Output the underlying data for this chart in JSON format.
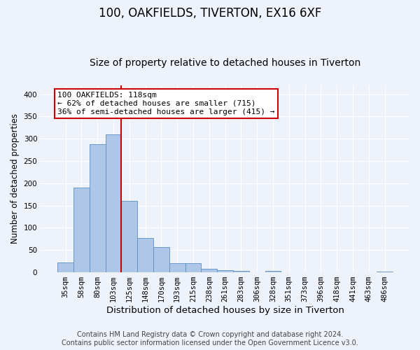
{
  "title": "100, OAKFIELDS, TIVERTON, EX16 6XF",
  "subtitle": "Size of property relative to detached houses in Tiverton",
  "xlabel": "Distribution of detached houses by size in Tiverton",
  "ylabel": "Number of detached properties",
  "categories": [
    "35sqm",
    "58sqm",
    "80sqm",
    "103sqm",
    "125sqm",
    "148sqm",
    "170sqm",
    "193sqm",
    "215sqm",
    "238sqm",
    "261sqm",
    "283sqm",
    "306sqm",
    "328sqm",
    "351sqm",
    "373sqm",
    "396sqm",
    "418sqm",
    "441sqm",
    "463sqm",
    "486sqm"
  ],
  "values": [
    22,
    190,
    288,
    310,
    160,
    77,
    57,
    20,
    20,
    8,
    5,
    4,
    0,
    4,
    0,
    0,
    0,
    0,
    0,
    0,
    1
  ],
  "bar_color": "#aec6e8",
  "bar_edge_color": "#5a8fc0",
  "vline_color": "#cc0000",
  "vline_xindex": 3.5,
  "annotation_text": "100 OAKFIELDS: 118sqm\n← 62% of detached houses are smaller (715)\n36% of semi-detached houses are larger (415) →",
  "annotation_box_color": "#ffffff",
  "annotation_box_edge_color": "#cc0000",
  "ylim": [
    0,
    420
  ],
  "yticks": [
    0,
    50,
    100,
    150,
    200,
    250,
    300,
    350,
    400
  ],
  "background_color": "#eef2fb",
  "grid_color": "#ffffff",
  "footer1": "Contains HM Land Registry data © Crown copyright and database right 2024.",
  "footer2": "Contains public sector information licensed under the Open Government Licence v3.0.",
  "title_fontsize": 12,
  "subtitle_fontsize": 10,
  "xlabel_fontsize": 9.5,
  "ylabel_fontsize": 8.5,
  "tick_fontsize": 7.5,
  "annotation_fontsize": 8,
  "footer_fontsize": 7
}
